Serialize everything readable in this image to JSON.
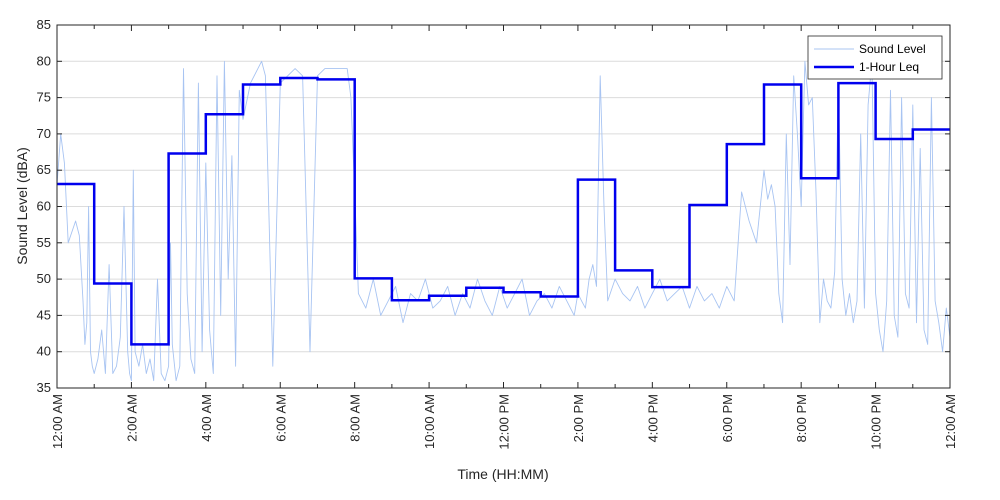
{
  "chart_data": {
    "type": "line",
    "title": "",
    "xlabel": "Time (HH:MM)",
    "ylabel": "Sound Level (dBA)",
    "ylim": [
      35,
      85
    ],
    "xlim_hours": [
      0,
      24
    ],
    "y_ticks": [
      35,
      40,
      45,
      50,
      55,
      60,
      65,
      70,
      75,
      80,
      85
    ],
    "x_ticks": [
      {
        "hour": 0,
        "label": "12:00 AM"
      },
      {
        "hour": 2,
        "label": "2:00 AM"
      },
      {
        "hour": 4,
        "label": "4:00 AM"
      },
      {
        "hour": 6,
        "label": "6:00 AM"
      },
      {
        "hour": 8,
        "label": "8:00 AM"
      },
      {
        "hour": 10,
        "label": "10:00 AM"
      },
      {
        "hour": 12,
        "label": "12:00 PM"
      },
      {
        "hour": 14,
        "label": "2:00 PM"
      },
      {
        "hour": 16,
        "label": "4:00 PM"
      },
      {
        "hour": 18,
        "label": "6:00 PM"
      },
      {
        "hour": 20,
        "label": "8:00 PM"
      },
      {
        "hour": 22,
        "label": "10:00 PM"
      },
      {
        "hour": 24,
        "label": "12:00 AM"
      }
    ],
    "grid": "horizontal",
    "legend_position": "top-right",
    "series": [
      {
        "name": "Sound Level",
        "style": "thin",
        "color": "#a8c4f2",
        "x": [
          0,
          0.1,
          0.2,
          0.3,
          0.5,
          0.6,
          0.7,
          0.75,
          0.8,
          0.85,
          0.9,
          0.95,
          1.0,
          1.1,
          1.2,
          1.3,
          1.4,
          1.5,
          1.6,
          1.7,
          1.8,
          1.9,
          1.95,
          2.0,
          2.05,
          2.1,
          2.2,
          2.3,
          2.4,
          2.5,
          2.6,
          2.7,
          2.8,
          2.9,
          3.0,
          3.05,
          3.1,
          3.2,
          3.3,
          3.4,
          3.5,
          3.6,
          3.7,
          3.8,
          3.9,
          4.0,
          4.1,
          4.2,
          4.3,
          4.4,
          4.5,
          4.6,
          4.7,
          4.8,
          4.9,
          5.0,
          5.2,
          5.4,
          5.5,
          5.6,
          5.8,
          6.0,
          6.2,
          6.4,
          6.6,
          6.8,
          7.0,
          7.2,
          7.4,
          7.6,
          7.8,
          7.9,
          8.0,
          8.1,
          8.3,
          8.5,
          8.7,
          8.9,
          9.1,
          9.3,
          9.5,
          9.7,
          9.9,
          10.1,
          10.3,
          10.5,
          10.7,
          10.9,
          11.1,
          11.3,
          11.5,
          11.7,
          11.9,
          12.1,
          12.3,
          12.5,
          12.7,
          12.9,
          13.1,
          13.3,
          13.5,
          13.7,
          13.9,
          14.0,
          14.1,
          14.2,
          14.3,
          14.4,
          14.5,
          14.6,
          14.7,
          14.8,
          15.0,
          15.2,
          15.4,
          15.6,
          15.8,
          16.0,
          16.2,
          16.4,
          16.6,
          16.8,
          17.0,
          17.2,
          17.4,
          17.6,
          17.8,
          18.0,
          18.2,
          18.4,
          18.6,
          18.8,
          19.0,
          19.1,
          19.2,
          19.3,
          19.4,
          19.5,
          19.6,
          19.7,
          19.8,
          19.9,
          20.0,
          20.1,
          20.2,
          20.3,
          20.4,
          20.5,
          20.6,
          20.7,
          20.8,
          20.9,
          21.0,
          21.1,
          21.2,
          21.3,
          21.4,
          21.5,
          21.6,
          21.7,
          21.8,
          21.9,
          22.0,
          22.1,
          22.2,
          22.3,
          22.4,
          22.5,
          22.6,
          22.7,
          22.8,
          22.9,
          23.0,
          23.1,
          23.2,
          23.3,
          23.4,
          23.5,
          23.6,
          23.7,
          23.8,
          23.9,
          24.0
        ],
        "y": [
          63,
          70,
          66,
          55,
          58,
          56,
          47,
          41,
          44,
          60,
          40,
          38,
          37,
          39,
          43,
          37,
          52,
          37,
          38,
          42,
          60,
          40,
          37,
          36,
          65,
          40,
          38,
          41,
          37,
          39,
          36,
          50,
          37,
          36,
          38,
          55,
          41,
          36,
          38,
          79,
          48,
          39,
          37,
          77,
          40,
          66,
          43,
          37,
          78,
          45,
          80,
          50,
          67,
          38,
          76,
          72,
          77,
          79,
          80,
          78,
          38,
          77,
          78,
          79,
          78,
          40,
          78,
          79,
          79,
          79,
          79,
          75,
          62,
          48,
          46,
          50,
          45,
          47,
          49,
          44,
          48,
          47,
          50,
          46,
          47,
          49,
          45,
          48,
          46,
          50,
          47,
          45,
          49,
          46,
          48,
          50,
          45,
          47,
          48,
          46,
          49,
          47,
          45,
          48,
          47,
          46,
          50,
          52,
          49,
          78,
          60,
          47,
          50,
          48,
          47,
          49,
          46,
          48,
          50,
          47,
          48,
          49,
          46,
          49,
          47,
          48,
          46,
          49,
          47,
          62,
          58,
          55,
          65,
          61,
          63,
          60,
          48,
          44,
          70,
          52,
          78,
          70,
          60,
          80,
          74,
          75,
          62,
          44,
          50,
          47,
          46,
          51,
          77,
          50,
          45,
          48,
          44,
          47,
          70,
          46,
          74,
          80,
          48,
          43,
          40,
          47,
          76,
          45,
          42,
          75,
          48,
          46,
          74,
          44,
          68,
          43,
          41,
          75,
          47,
          44,
          40,
          46,
          42
        ]
      },
      {
        "name": "1-Hour Leq",
        "style": "step",
        "color": "#0000ee",
        "x": [
          0,
          1,
          2,
          3,
          4,
          5,
          6,
          7,
          8,
          9,
          10,
          11,
          12,
          13,
          14,
          15,
          16,
          17,
          18,
          19,
          20,
          21,
          22,
          23
        ],
        "values": [
          63.1,
          49.4,
          41.0,
          67.3,
          72.7,
          76.8,
          77.7,
          77.5,
          50.1,
          47.1,
          47.7,
          48.8,
          48.2,
          47.6,
          63.7,
          51.2,
          48.9,
          60.2,
          68.6,
          76.8,
          63.9,
          77.0,
          69.3,
          70.6
        ]
      }
    ]
  }
}
